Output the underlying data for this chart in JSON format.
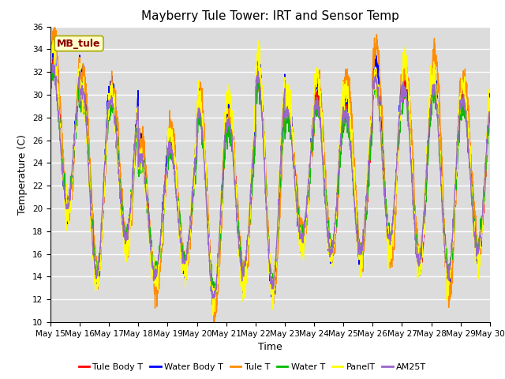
{
  "title": "Mayberry Tule Tower: IRT and Sensor Temp",
  "xlabel": "Time",
  "ylabel": "Temperature (C)",
  "ylim": [
    10,
    36
  ],
  "yticks": [
    10,
    12,
    14,
    16,
    18,
    20,
    22,
    24,
    26,
    28,
    30,
    32,
    34,
    36
  ],
  "xtick_labels": [
    "May 15",
    "May 16",
    "May 17",
    "May 18",
    "May 19",
    "May 20",
    "May 21",
    "May 22",
    "May 23",
    "May 24",
    "May 25",
    "May 26",
    "May 27",
    "May 28",
    "May 29",
    "May 30"
  ],
  "series_names": [
    "Tule Body T",
    "Water Body T",
    "Tule T",
    "Water T",
    "PanelT",
    "AM25T"
  ],
  "series_colors": [
    "#FF0000",
    "#0000FF",
    "#FF8C00",
    "#00BB00",
    "#FFFF00",
    "#9966CC"
  ],
  "lw": 1.0,
  "watermark_text": "MB_tule",
  "watermark_color": "#8B0000",
  "watermark_bg": "#FFFFCC",
  "watermark_edgecolor": "#AAAA00",
  "background_color": "#DCDCDC",
  "title_fontsize": 11,
  "legend_fontsize": 8,
  "tick_fontsize": 7.5,
  "axis_fontsize": 9
}
